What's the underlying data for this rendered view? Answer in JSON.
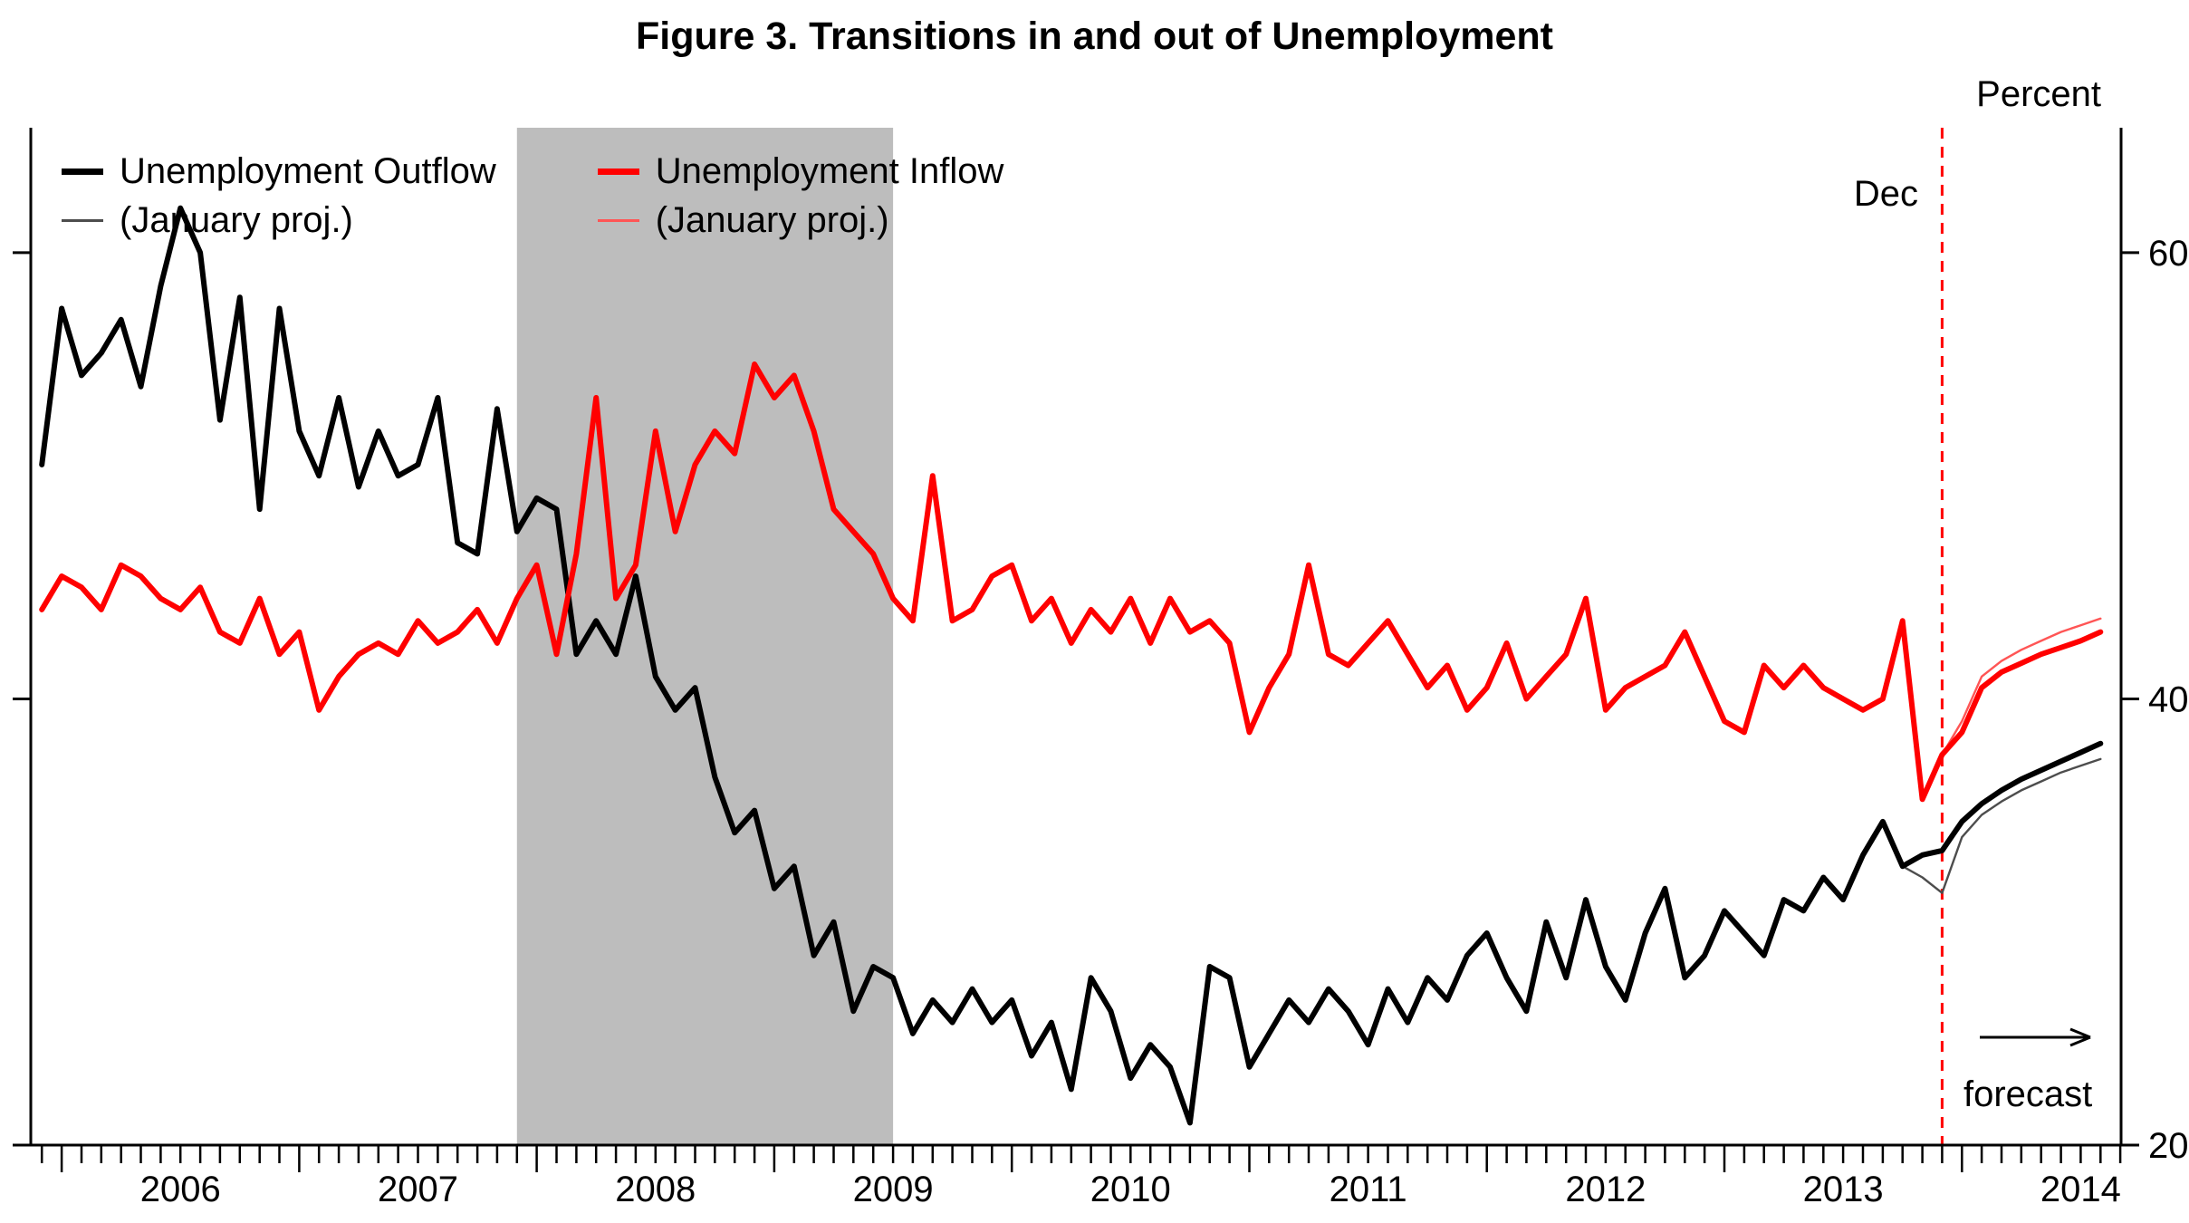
{
  "title": "Figure 3. Transitions in and out of Unemployment",
  "y_axis_label": "Percent",
  "annotations": {
    "dec_label": "Dec",
    "forecast_label": "forecast"
  },
  "legend": {
    "outflow": {
      "label": "Unemployment Outflow",
      "proj_label": "(January proj.)"
    },
    "inflow": {
      "label": "Unemployment Inflow",
      "proj_label": "(January proj.)"
    }
  },
  "chart_data": {
    "type": "line",
    "title": "Figure 3. Transitions in and out of Unemployment",
    "xlabel": "",
    "ylabel": "Percent",
    "xlim": [
      2005.87,
      2014.67
    ],
    "ylim": [
      20,
      65.6
    ],
    "grid": false,
    "legend_position": "top-left-inside",
    "x_ticks": [
      {
        "label": "2006",
        "x": 2006.5
      },
      {
        "label": "2007",
        "x": 2007.5
      },
      {
        "label": "2008",
        "x": 2008.5
      },
      {
        "label": "2009",
        "x": 2009.5
      },
      {
        "label": "2010",
        "x": 2010.5
      },
      {
        "label": "2011",
        "x": 2011.5
      },
      {
        "label": "2012",
        "x": 2012.5
      },
      {
        "label": "2013",
        "x": 2013.5
      },
      {
        "label": "2014",
        "x": 2014.5
      }
    ],
    "y_ticks": [
      {
        "label": "20",
        "v": 20
      },
      {
        "label": "40",
        "v": 40
      },
      {
        "label": "60",
        "v": 60
      }
    ],
    "recession_band": {
      "from": 2007.9167,
      "to": 2009.5,
      "color": "#bdbdbd"
    },
    "forecast_divider_x": 2013.9167,
    "series": [
      {
        "id": "outflow-proj",
        "name": "Unemployment Outflow (January proj.)",
        "color": "#4d4d4d",
        "width": 2.4,
        "start_year": 2013,
        "start_month": 10,
        "values": [
          32.5,
          32.0,
          31.3,
          33.8,
          34.8,
          35.4,
          35.9,
          36.3,
          36.7,
          37.0,
          37.3
        ]
      },
      {
        "id": "inflow-proj",
        "name": "Unemployment Inflow (January proj.)",
        "color": "#ff5555",
        "width": 2.4,
        "start_year": 2013,
        "start_month": 12,
        "values": [
          37.5,
          39.0,
          41.0,
          41.7,
          42.2,
          42.6,
          43.0,
          43.3,
          43.6
        ]
      },
      {
        "id": "outflow",
        "name": "Unemployment Outflow",
        "color": "#000000",
        "width": 6,
        "start_year": 2005,
        "start_month": 12,
        "values": [
          50.5,
          57.5,
          54.5,
          55.5,
          57.0,
          54.0,
          58.5,
          62.0,
          60.0,
          52.5,
          58.0,
          48.5,
          57.5,
          52.0,
          50.0,
          53.5,
          49.5,
          52.0,
          50.0,
          50.5,
          53.5,
          47.0,
          46.5,
          53.0,
          47.5,
          49.0,
          48.5,
          42.0,
          43.5,
          42.0,
          45.5,
          41.0,
          39.5,
          40.5,
          36.5,
          34.0,
          35.0,
          31.5,
          32.5,
          28.5,
          30.0,
          26.0,
          28.0,
          27.5,
          25.0,
          26.5,
          25.5,
          27.0,
          25.5,
          26.5,
          24.0,
          25.5,
          22.5,
          27.5,
          26.0,
          23.0,
          24.5,
          23.5,
          21.0,
          28.0,
          27.5,
          23.5,
          25.0,
          26.5,
          25.5,
          27.0,
          26.0,
          24.5,
          27.0,
          25.5,
          27.5,
          26.5,
          28.5,
          29.5,
          27.5,
          26.0,
          30.0,
          27.5,
          31.0,
          28.0,
          26.5,
          29.5,
          31.5,
          27.5,
          28.5,
          30.5,
          29.5,
          28.5,
          31.0,
          30.5,
          32.0,
          31.0,
          33.0,
          34.5,
          32.5,
          33.0,
          33.2,
          34.5,
          35.3,
          35.9,
          36.4,
          36.8,
          37.2,
          37.6,
          38.0
        ]
      },
      {
        "id": "inflow",
        "name": "Unemployment Inflow",
        "color": "#ff0000",
        "width": 6,
        "start_year": 2005,
        "start_month": 12,
        "values": [
          44.0,
          45.5,
          45.0,
          44.0,
          46.0,
          45.5,
          44.5,
          44.0,
          45.0,
          43.0,
          42.5,
          44.5,
          42.0,
          43.0,
          39.5,
          41.0,
          42.0,
          42.5,
          42.0,
          43.5,
          42.5,
          43.0,
          44.0,
          42.5,
          44.5,
          46.0,
          42.0,
          46.5,
          53.5,
          44.5,
          46.0,
          52.0,
          47.5,
          50.5,
          52.0,
          51.0,
          55.0,
          53.5,
          54.5,
          52.0,
          48.5,
          47.5,
          46.5,
          44.5,
          43.5,
          50.0,
          43.5,
          44.0,
          45.5,
          46.0,
          43.5,
          44.5,
          42.5,
          44.0,
          43.0,
          44.5,
          42.5,
          44.5,
          43.0,
          43.5,
          42.5,
          38.5,
          40.5,
          42.0,
          46.0,
          42.0,
          41.5,
          42.5,
          43.5,
          42.0,
          40.5,
          41.5,
          39.5,
          40.5,
          42.5,
          40.0,
          41.0,
          42.0,
          44.5,
          39.5,
          40.5,
          41.0,
          41.5,
          43.0,
          41.0,
          39.0,
          38.5,
          41.5,
          40.5,
          41.5,
          40.5,
          40.0,
          39.5,
          40.0,
          43.5,
          35.5,
          37.5,
          38.5,
          40.5,
          41.2,
          41.6,
          42.0,
          42.3,
          42.6,
          43.0
        ]
      }
    ]
  }
}
